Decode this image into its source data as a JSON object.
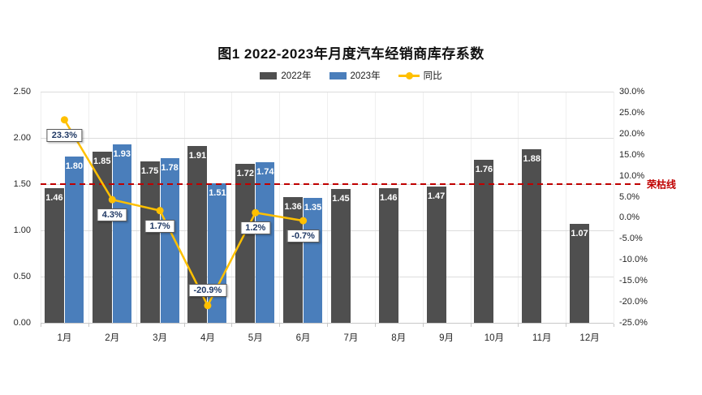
{
  "chart_data": {
    "type": "bar",
    "title": "图1  2022-2023年月度汽车经销商库存系数",
    "categories": [
      "1月",
      "2月",
      "3月",
      "4月",
      "5月",
      "6月",
      "7月",
      "8月",
      "9月",
      "10月",
      "11月",
      "12月"
    ],
    "series": [
      {
        "name": "2022年",
        "type": "bar",
        "color": "#4f4f4f",
        "values": [
          1.46,
          1.85,
          1.75,
          1.91,
          1.72,
          1.36,
          1.45,
          1.46,
          1.47,
          1.76,
          1.88,
          1.07
        ],
        "labels": [
          "1.46",
          "1.85",
          "1.75",
          "1.91",
          "1.72",
          "1.36",
          "1.45",
          "1.46",
          "1.47",
          "1.76",
          "1.88",
          "1.07"
        ]
      },
      {
        "name": "2023年",
        "type": "bar",
        "color": "#4a7ebb",
        "values": [
          1.8,
          1.93,
          1.78,
          1.51,
          1.74,
          1.35,
          null,
          null,
          null,
          null,
          null,
          null
        ],
        "labels": [
          "1.80",
          "1.93",
          "1.78",
          "1.51",
          "1.74",
          "1.35",
          null,
          null,
          null,
          null,
          null,
          null
        ]
      },
      {
        "name": "同比",
        "type": "line",
        "axis": "right",
        "color": "#ffc000",
        "values": [
          23.3,
          4.3,
          1.7,
          -20.9,
          1.2,
          -0.7,
          null,
          null,
          null,
          null,
          null,
          null
        ],
        "labels": [
          "23.3%",
          "4.3%",
          "1.7%",
          "-20.9%",
          "1.2%",
          "-0.7%",
          null,
          null,
          null,
          null,
          null,
          null
        ]
      }
    ],
    "left_axis": {
      "min": 0,
      "max": 2.5,
      "step": 0.5,
      "ticks": [
        "0.00",
        "0.50",
        "1.00",
        "1.50",
        "2.00",
        "2.50"
      ]
    },
    "right_axis": {
      "min": -25,
      "max": 30,
      "step": 5,
      "ticks": [
        "30.0%",
        "25.0%",
        "20.0%",
        "15.0%",
        "10.0%",
        "5.0%",
        "0.0%",
        "-5.0%",
        "-10.0%",
        "-15.0%",
        "-20.0%",
        "-25.0%"
      ]
    },
    "reference_line": {
      "value": 1.5,
      "label": "荣枯线",
      "color": "#c00000"
    },
    "callout_text_color": "#1f3864",
    "legend_position": "top",
    "grid": true
  }
}
